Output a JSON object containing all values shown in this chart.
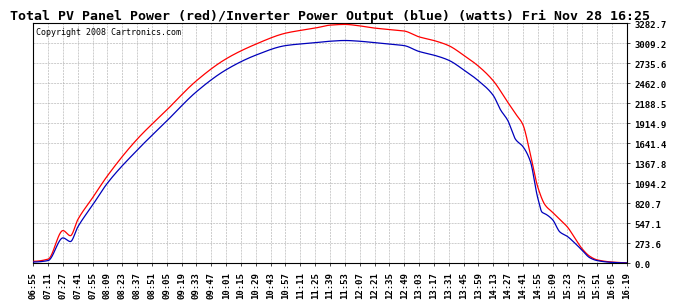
{
  "title": "Total PV Panel Power (red)/Inverter Power Output (blue) (watts) Fri Nov 28 16:25",
  "copyright": "Copyright 2008 Cartronics.com",
  "ylabel_ticks": [
    0.0,
    273.6,
    547.1,
    820.7,
    1094.2,
    1367.8,
    1641.4,
    1914.9,
    2188.5,
    2462.0,
    2735.6,
    3009.2,
    3282.7
  ],
  "ymax": 3282.7,
  "ymin": 0.0,
  "background_color": "#ffffff",
  "plot_bg_color": "#ffffff",
  "grid_color": "#aaaaaa",
  "line_color_pv": "#ff0000",
  "line_color_inv": "#0000bb",
  "title_fontsize": 9.5,
  "copyright_fontsize": 6,
  "tick_label_fontsize": 6.5,
  "x_tick_labels": [
    "06:55",
    "07:11",
    "07:27",
    "07:41",
    "07:55",
    "08:09",
    "08:23",
    "08:37",
    "08:51",
    "09:05",
    "09:19",
    "09:33",
    "09:47",
    "10:01",
    "10:15",
    "10:29",
    "10:43",
    "10:57",
    "11:11",
    "11:25",
    "11:39",
    "11:53",
    "12:07",
    "12:21",
    "12:35",
    "12:49",
    "13:03",
    "13:17",
    "13:31",
    "13:45",
    "13:59",
    "14:13",
    "14:27",
    "14:41",
    "14:55",
    "15:09",
    "15:23",
    "15:37",
    "15:51",
    "16:05",
    "16:19"
  ]
}
